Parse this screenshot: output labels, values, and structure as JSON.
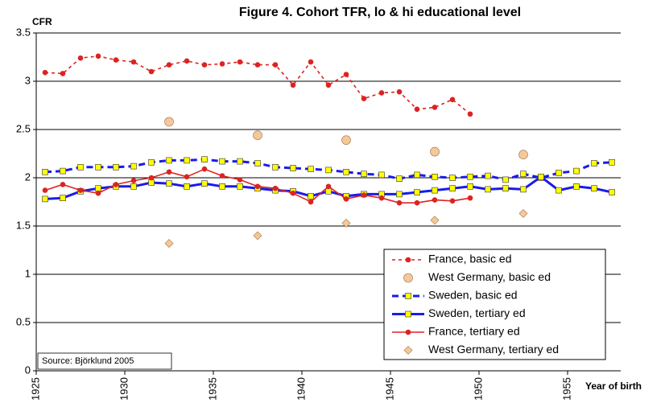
{
  "chart_data": {
    "type": "line",
    "title": "Figure 4. Cohort TFR, lo & hi educational level",
    "y_label": "CFR",
    "x_label": "Year of birth",
    "annotation": "Source: Björklund 2005",
    "xlim": [
      1924.5,
      1957.5
    ],
    "xticks": [
      {
        "value": 1924.5,
        "label": "1925"
      },
      {
        "value": 1929.5,
        "label": "1930"
      },
      {
        "value": 1934.5,
        "label": "1935"
      },
      {
        "value": 1939.5,
        "label": "1940"
      },
      {
        "value": 1944.5,
        "label": "1945"
      },
      {
        "value": 1949.5,
        "label": "1950"
      },
      {
        "value": 1954.5,
        "label": "1955"
      }
    ],
    "ylim": [
      0,
      3.5
    ],
    "yticks": [
      0,
      0.5,
      1,
      1.5,
      2,
      2.5,
      3,
      3.5
    ],
    "grid": true,
    "legend": "lower right",
    "series": [
      {
        "name": "France, basic ed",
        "color": "#dd2222",
        "line": "dashed",
        "marker": "circle",
        "marker_color": "#dd2222",
        "x": [
          1925,
          1926,
          1927,
          1928,
          1929,
          1930,
          1931,
          1932,
          1933,
          1934,
          1935,
          1936,
          1937,
          1938,
          1939,
          1940,
          1941,
          1942,
          1943,
          1944,
          1945,
          1946,
          1947,
          1948,
          1949
        ],
        "values": [
          3.09,
          3.08,
          3.24,
          3.26,
          3.22,
          3.2,
          3.1,
          3.17,
          3.21,
          3.17,
          3.18,
          3.2,
          3.17,
          3.17,
          2.96,
          3.2,
          2.96,
          3.07,
          2.82,
          2.88,
          2.89,
          2.71,
          2.73,
          2.81,
          2.66
        ]
      },
      {
        "name": "West Germany, basic ed",
        "color": "#f5c89a",
        "line": "none",
        "marker": "circle",
        "marker_color": "#f5c89a",
        "x": [
          1932,
          1937,
          1942,
          1947,
          1952
        ],
        "values": [
          2.58,
          2.44,
          2.39,
          2.27,
          2.24
        ]
      },
      {
        "name": "Sweden, basic ed",
        "color": "#1a1aee",
        "line": "dashed",
        "marker": "square",
        "marker_color": "#ffff00",
        "x": [
          1925,
          1926,
          1927,
          1928,
          1929,
          1930,
          1931,
          1932,
          1933,
          1934,
          1935,
          1936,
          1937,
          1938,
          1939,
          1940,
          1941,
          1942,
          1943,
          1944,
          1945,
          1946,
          1947,
          1948,
          1949,
          1950,
          1951,
          1952,
          1953,
          1954,
          1955,
          1956,
          1957
        ],
        "values": [
          2.06,
          2.07,
          2.11,
          2.11,
          2.11,
          2.12,
          2.16,
          2.18,
          2.18,
          2.19,
          2.17,
          2.17,
          2.15,
          2.11,
          2.1,
          2.09,
          2.08,
          2.06,
          2.04,
          2.03,
          1.99,
          2.03,
          2.01,
          2,
          2.01,
          2.02,
          1.98,
          2.04,
          2,
          2.05,
          2.07,
          2.15,
          2.16
        ]
      },
      {
        "name": "Sweden, tertiary ed",
        "color": "#1a1aee",
        "line": "solid",
        "marker": "square",
        "marker_color": "#ffff00",
        "x": [
          1925,
          1926,
          1927,
          1928,
          1929,
          1930,
          1931,
          1932,
          1933,
          1934,
          1935,
          1936,
          1937,
          1938,
          1939,
          1940,
          1941,
          1942,
          1943,
          1944,
          1945,
          1946,
          1947,
          1948,
          1949,
          1950,
          1951,
          1952,
          1953,
          1954,
          1955,
          1956,
          1957
        ],
        "values": [
          1.78,
          1.79,
          1.86,
          1.89,
          1.91,
          1.91,
          1.95,
          1.94,
          1.91,
          1.94,
          1.91,
          1.91,
          1.89,
          1.87,
          1.86,
          1.81,
          1.86,
          1.81,
          1.83,
          1.83,
          1.83,
          1.85,
          1.87,
          1.89,
          1.91,
          1.88,
          1.89,
          1.88,
          2.01,
          1.87,
          1.91,
          1.89,
          1.85
        ]
      },
      {
        "name": "France, tertiary ed",
        "color": "#dd2222",
        "line": "solid",
        "marker": "circle",
        "marker_color": "#dd2222",
        "x": [
          1925,
          1926,
          1927,
          1928,
          1929,
          1930,
          1931,
          1932,
          1933,
          1934,
          1935,
          1936,
          1937,
          1938,
          1939,
          1940,
          1941,
          1942,
          1943,
          1944,
          1945,
          1946,
          1947,
          1948,
          1949
        ],
        "values": [
          1.87,
          1.93,
          1.87,
          1.84,
          1.93,
          1.97,
          2,
          2.06,
          2.01,
          2.09,
          2.02,
          1.98,
          1.91,
          1.89,
          1.84,
          1.75,
          1.91,
          1.78,
          1.82,
          1.79,
          1.74,
          1.74,
          1.77,
          1.76,
          1.79
        ]
      },
      {
        "name": "West Germany, tertiary ed",
        "color": "#f5c89a",
        "line": "none",
        "marker": "diamond",
        "marker_color": "#f5c89a",
        "x": [
          1932,
          1937,
          1942,
          1947,
          1952
        ],
        "values": [
          1.32,
          1.4,
          1.53,
          1.56,
          1.63
        ]
      }
    ]
  }
}
